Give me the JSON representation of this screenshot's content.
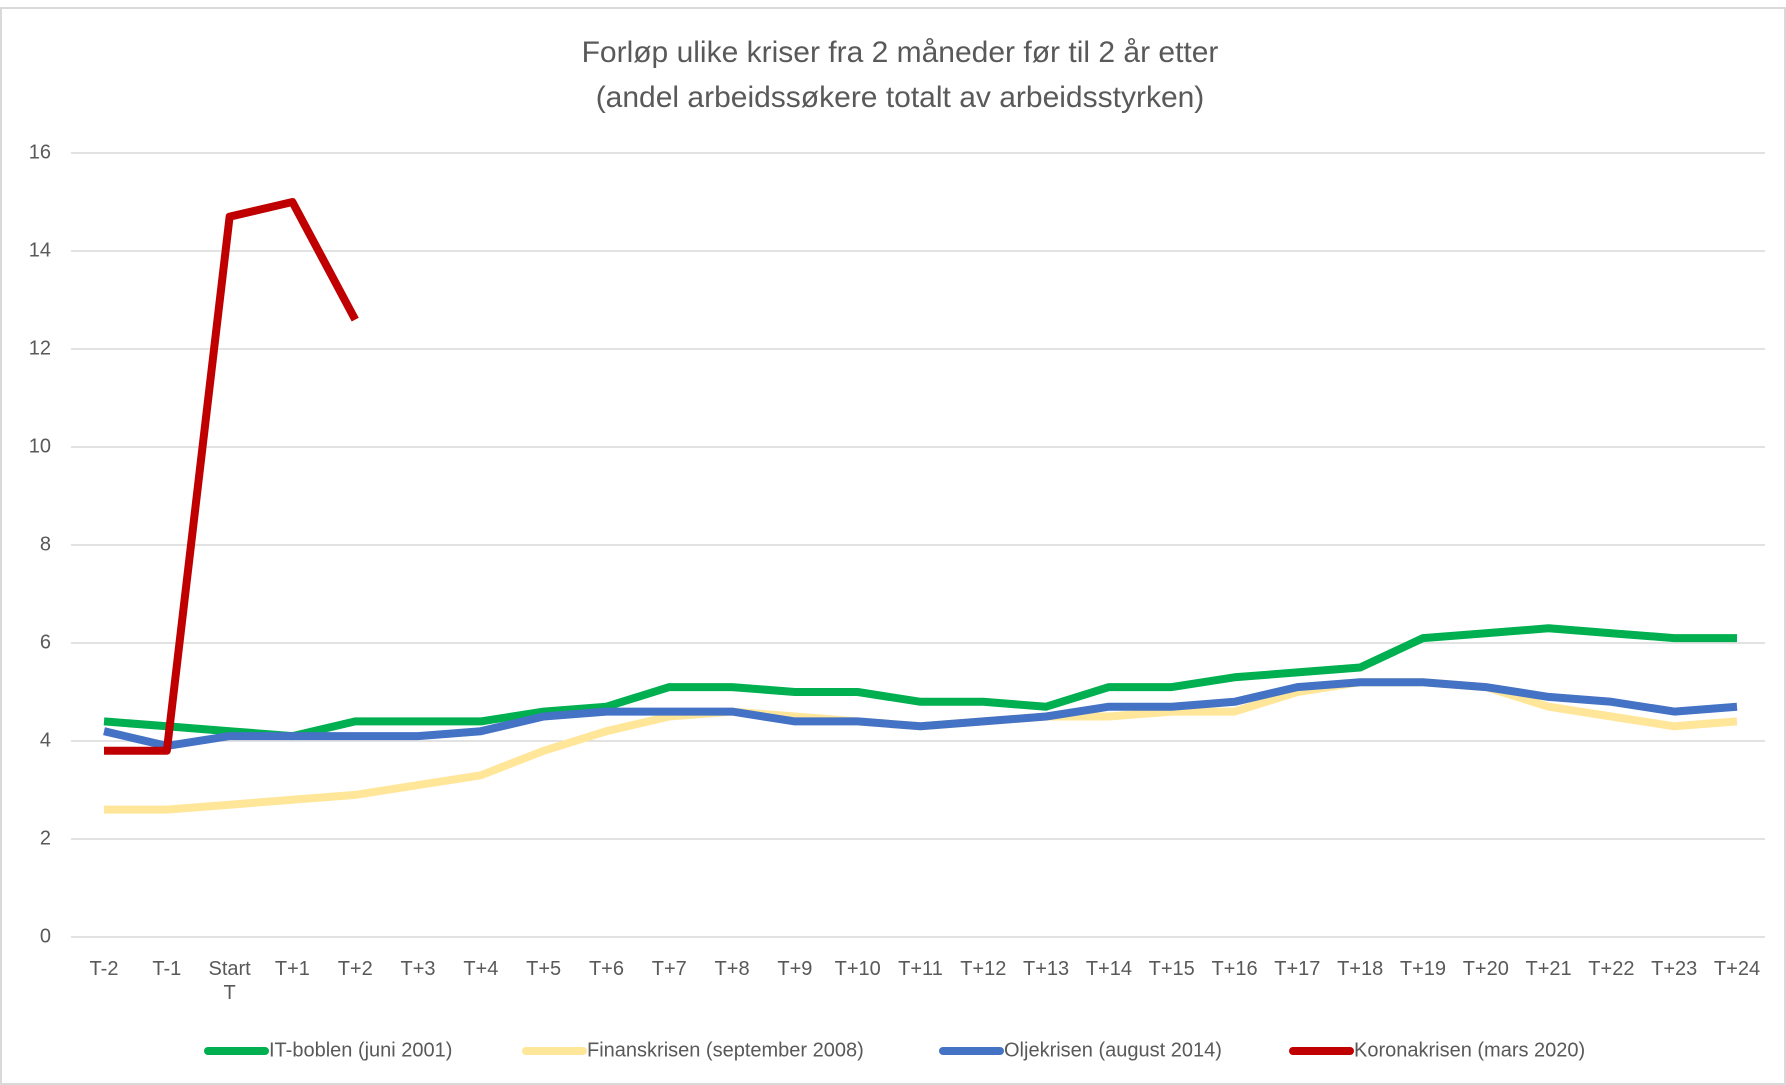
{
  "chart_data": {
    "type": "line",
    "title": "Forløp ulike kriser fra 2 måneder før til 2 år etter",
    "subtitle": "(andel arbeidssøkere totalt av arbeidsstyrken)",
    "categories": [
      "T-2",
      "T-1",
      "Start T",
      "T+1",
      "T+2",
      "T+3",
      "T+4",
      "T+5",
      "T+6",
      "T+7",
      "T+8",
      "T+9",
      "T+10",
      "T+11",
      "T+12",
      "T+13",
      "T+14",
      "T+15",
      "T+16",
      "T+17",
      "T+18",
      "T+19",
      "T+20",
      "T+21",
      "T+22",
      "T+23",
      "T+24"
    ],
    "series": [
      {
        "name": "IT-boblen (juni 2001)",
        "color": "#00b050",
        "values": [
          4.4,
          4.3,
          4.2,
          4.1,
          4.4,
          4.4,
          4.4,
          4.6,
          4.7,
          5.1,
          5.1,
          5.0,
          5.0,
          4.8,
          4.8,
          4.7,
          5.1,
          5.1,
          5.3,
          5.4,
          5.5,
          6.1,
          6.2,
          6.3,
          6.2,
          6.1,
          6.1
        ]
      },
      {
        "name": "Finanskrisen (september 2008)",
        "color": "#ffe699",
        "values": [
          2.6,
          2.6,
          2.7,
          2.8,
          2.9,
          3.1,
          3.3,
          3.8,
          4.2,
          4.5,
          4.6,
          4.5,
          4.4,
          4.3,
          4.4,
          4.5,
          4.5,
          4.6,
          4.6,
          5.0,
          5.2,
          5.2,
          5.1,
          4.7,
          4.5,
          4.3,
          4.4
        ]
      },
      {
        "name": "Oljekrisen (august 2014)",
        "color": "#4472c4",
        "values": [
          4.2,
          3.9,
          4.1,
          4.1,
          4.1,
          4.1,
          4.2,
          4.5,
          4.6,
          4.6,
          4.6,
          4.4,
          4.4,
          4.3,
          4.4,
          4.5,
          4.7,
          4.7,
          4.8,
          5.1,
          5.2,
          5.2,
          5.1,
          4.9,
          4.8,
          4.6,
          4.7
        ]
      },
      {
        "name": "Koronakrisen (mars 2020)",
        "color": "#c00000",
        "values": [
          3.8,
          3.8,
          14.7,
          15.0,
          12.6,
          null,
          null,
          null,
          null,
          null,
          null,
          null,
          null,
          null,
          null,
          null,
          null,
          null,
          null,
          null,
          null,
          null,
          null,
          null,
          null,
          null,
          null
        ]
      }
    ],
    "ylim": [
      0,
      16
    ],
    "yticks": [
      0,
      2,
      4,
      6,
      8,
      10,
      12,
      14,
      16
    ],
    "grid": true
  }
}
